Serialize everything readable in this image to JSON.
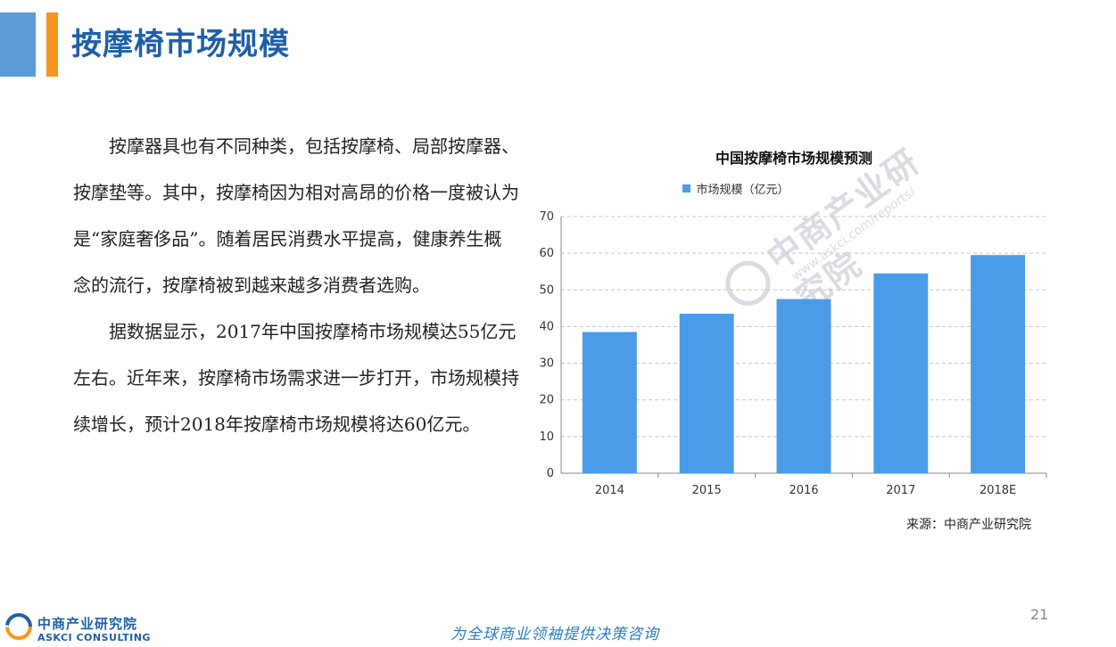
{
  "header": {
    "title": "按摩椅市场规模",
    "accent_blue": "#5b9bd5",
    "accent_orange": "#f7941d"
  },
  "body": {
    "paragraphs": [
      "按摩器具也有不同种类，包括按摩椅、局部按摩器、按摩垫等。其中，按摩椅因为相对高昂的价格一度被认为是“家庭奢侈品”。随着居民消费水平提高，健康养生概念的流行，按摩椅被到越来越多消费者选购。",
      "据数据显示，2017年中国按摩椅市场规模达55亿元左右。近年来，按摩椅市场需求进一步打开，市场规模持续增长，预计2018年按摩椅市场规模将达60亿元。"
    ]
  },
  "chart_data": {
    "type": "bar",
    "title": "中国按摩椅市场规模预测",
    "categories": [
      "2014",
      "2015",
      "2016",
      "2017",
      "2018E"
    ],
    "series": [
      {
        "name": "市场规模（亿元）",
        "values": [
          38.5,
          43.5,
          47.5,
          54.5,
          59.5
        ],
        "color": "#4a9be8"
      }
    ],
    "ylim": [
      0,
      70
    ],
    "yticks": [
      0,
      10,
      20,
      30,
      40,
      50,
      60,
      70
    ],
    "grid": true,
    "legend": "top"
  },
  "source": "来源：中商产业研究院",
  "watermark": {
    "text_cn": "中商产业研究院",
    "url": "www.askci.com/reports/"
  },
  "footer": {
    "logo_cn": "中商产业研究院",
    "logo_en": "ASKCI CONSULTING",
    "slogan": "为全球商业领袖提供决策咨询",
    "page_number": "21"
  }
}
